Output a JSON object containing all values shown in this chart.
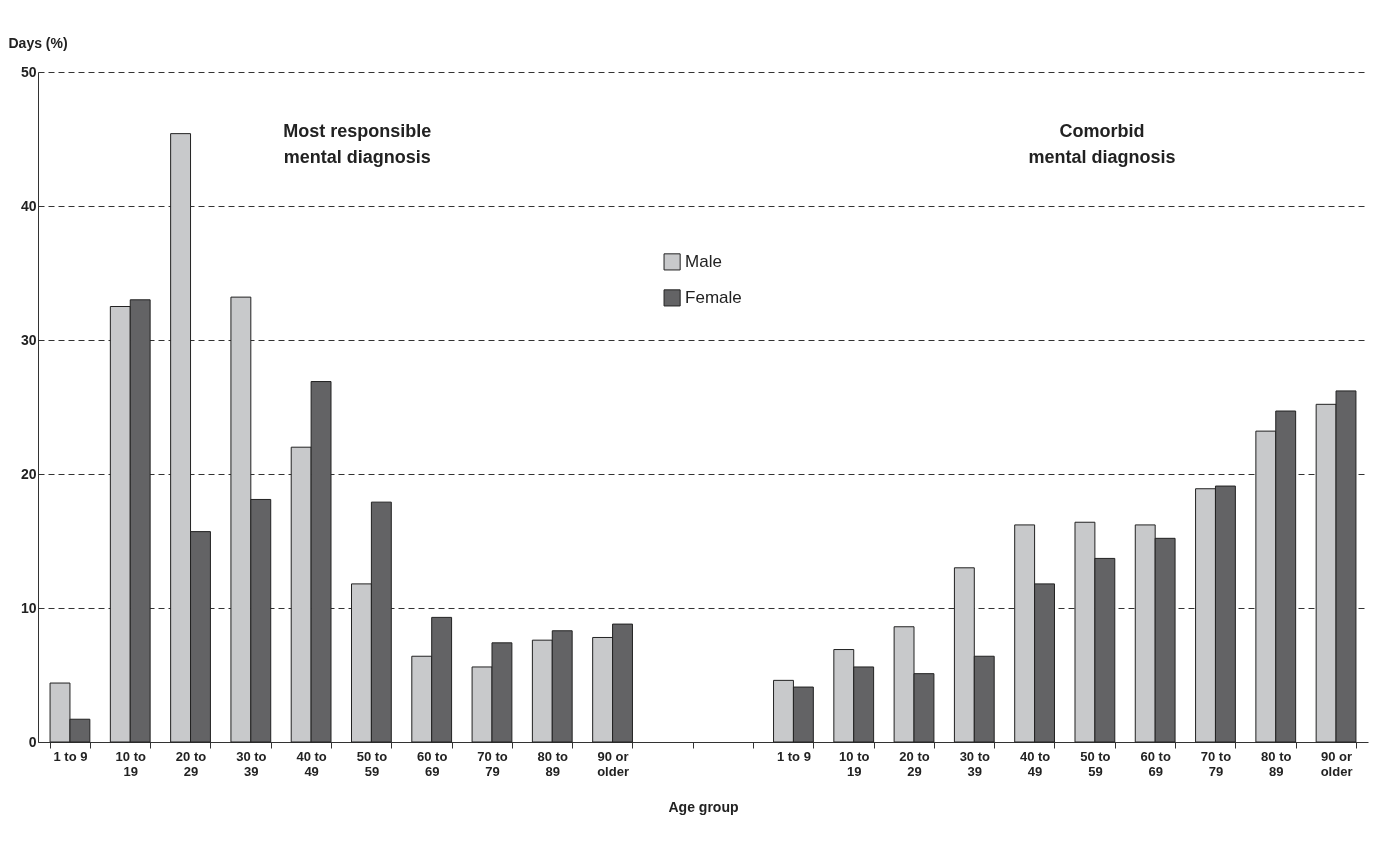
{
  "chart_data": {
    "type": "bar",
    "xlabel": "Age group",
    "ylabel": "Days (%)",
    "categories": [
      "1 to 9",
      "10 to 19",
      "20 to 29",
      "30 to 39",
      "40 to 49",
      "50 to 59",
      "60 to 69",
      "70 to 79",
      "80 to 89",
      "90 or older",
      null,
      null,
      "1 to 9",
      "10 to 19",
      "20 to 29",
      "30 to 39",
      "40 to 49",
      "50 to 59",
      "60 to 69",
      "70 to 79",
      "80 to 89",
      "90 or older"
    ],
    "series": [
      {
        "name": "Male",
        "color": "#c8c9cb",
        "values": [
          4.4,
          32.5,
          45.4,
          33.2,
          22.0,
          11.8,
          6.4,
          5.6,
          7.6,
          7.8,
          null,
          null,
          4.6,
          6.9,
          8.6,
          13.0,
          16.2,
          16.4,
          16.2,
          18.9,
          23.2,
          25.2
        ]
      },
      {
        "name": "Female",
        "color": "#636365",
        "values": [
          1.7,
          33.0,
          15.7,
          18.1,
          26.9,
          17.9,
          9.3,
          7.4,
          8.3,
          8.8,
          null,
          null,
          4.1,
          5.6,
          5.1,
          6.4,
          11.8,
          13.7,
          15.2,
          19.1,
          24.7,
          26.2
        ]
      }
    ],
    "annotations": [
      "Most responsible mental diagnosis",
      "Comorbid mental diagnosis"
    ],
    "ylim": [
      0,
      50
    ],
    "yticks": [
      0,
      10,
      20,
      30,
      40,
      50
    ],
    "grid": "y",
    "legend": "top"
  }
}
